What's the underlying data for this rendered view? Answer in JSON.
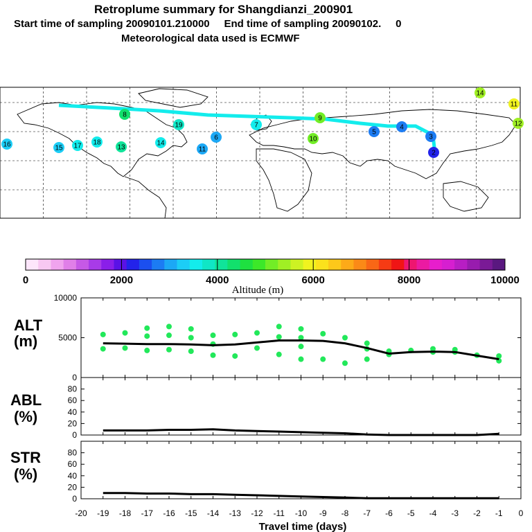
{
  "header": {
    "title": "Retroplume summary for Shangdianzi_200901",
    "sampling": "Start time of sampling 20090101.210000     End time of sampling 20090102.     0",
    "met": "Meteorological data used is ECMWF"
  },
  "colorbar": {
    "label": "Altitude (m)",
    "ticks": [
      "0",
      "2000",
      "4000",
      "6000",
      "8000",
      "10000"
    ],
    "colors": [
      "#fde6fb",
      "#f8c8f2",
      "#f0a4ee",
      "#e07fe8",
      "#c659e6",
      "#a83be8",
      "#8a1fe9",
      "#5a12e6",
      "#2323ea",
      "#1b4fef",
      "#1c7cf3",
      "#1ca8f5",
      "#1ccdf6",
      "#13ecec",
      "#10e6c6",
      "#10e49a",
      "#12e06c",
      "#1ee040",
      "#3ce829",
      "#72ed26",
      "#a0ef24",
      "#cdf223",
      "#f0f31f",
      "#fbe21c",
      "#fdc81a",
      "#fdaa18",
      "#fb8a17",
      "#f96716",
      "#f63b14",
      "#f01515",
      "#ee1670",
      "#eb1aa2",
      "#e71ecc",
      "#d61fd0",
      "#b81ec4",
      "#981cae",
      "#7a1a96",
      "#5a1880"
    ]
  },
  "map": {
    "labels": [
      {
        "n": "16",
        "c": "#1ccdf6"
      },
      {
        "n": "15",
        "c": "#1ccdf6"
      },
      {
        "n": "17",
        "c": "#13ecec"
      },
      {
        "n": "18",
        "c": "#13ecec"
      },
      {
        "n": "13",
        "c": "#10e49a"
      },
      {
        "n": "19",
        "c": "#10e6c6"
      },
      {
        "n": "14",
        "c": "#13ecec"
      },
      {
        "n": "11",
        "c": "#1ca8f5"
      },
      {
        "n": "6",
        "c": "#1ca8f5"
      },
      {
        "n": "7",
        "c": "#13ecec"
      },
      {
        "n": "5",
        "c": "#1c7cf3"
      },
      {
        "n": "4",
        "c": "#1c7cf3"
      },
      {
        "n": "3",
        "c": "#1c7cf3"
      },
      {
        "n": "2",
        "c": "#2323ea"
      },
      {
        "n": "10",
        "c": "#72ed26"
      },
      {
        "n": "9",
        "c": "#72ed26"
      },
      {
        "n": "8",
        "c": "#12e06c"
      },
      {
        "n": "12",
        "c": "#a0ef24"
      },
      {
        "n": "14",
        "c": "#a0ef24"
      },
      {
        "n": "11",
        "c": "#f0f31f"
      }
    ]
  },
  "panels": {
    "alt": {
      "label1": "ALT",
      "label2": "(m)",
      "yticks": [
        "10000",
        "5000",
        "0"
      ]
    },
    "abl": {
      "label1": "ABL",
      "label2": "(%)",
      "yticks": [
        "80",
        "60",
        "40",
        "20",
        "0"
      ]
    },
    "str": {
      "label1": "STR",
      "label2": "(%)",
      "yticks": [
        "80",
        "60",
        "40",
        "20",
        "0"
      ]
    }
  },
  "chart_data": {
    "type": "line",
    "title": "Retroplume summary for Shangdianzi_200901",
    "xlabel": "Travel time (days)",
    "x_ticks": [
      "-20",
      "-19",
      "-18",
      "-17",
      "-16",
      "-15",
      "-14",
      "-13",
      "-12",
      "-11",
      "-10",
      "-9",
      "-8",
      "-7",
      "-6",
      "-5",
      "-4",
      "-3",
      "-2",
      "-1",
      "0"
    ],
    "xlim": [
      -20,
      0
    ],
    "series": [
      {
        "name": "ALT (m)",
        "ylim": [
          0,
          10000
        ],
        "x": [
          -19,
          -18,
          -17,
          -16,
          -15,
          -14,
          -13,
          -12,
          -11,
          -10,
          -9,
          -8,
          -7,
          -6,
          -5,
          -4,
          -3,
          -2,
          -1
        ],
        "values": [
          4300,
          4250,
          4200,
          4200,
          4150,
          4050,
          4150,
          4400,
          4650,
          4650,
          4600,
          4300,
          3700,
          3000,
          3200,
          3250,
          3200,
          2750,
          2300
        ],
        "cluster_points": [
          [
            -19,
            5400
          ],
          [
            -19,
            3600
          ],
          [
            -18,
            5600
          ],
          [
            -18,
            3700
          ],
          [
            -17,
            6200
          ],
          [
            -17,
            5200
          ],
          [
            -17,
            3400
          ],
          [
            -16,
            6400
          ],
          [
            -16,
            5300
          ],
          [
            -16,
            3500
          ],
          [
            -15,
            6100
          ],
          [
            -15,
            5000
          ],
          [
            -15,
            3300
          ],
          [
            -14,
            5300
          ],
          [
            -14,
            4200
          ],
          [
            -14,
            2800
          ],
          [
            -13,
            5400
          ],
          [
            -13,
            2700
          ],
          [
            -12,
            5600
          ],
          [
            -12,
            3700
          ],
          [
            -11,
            6400
          ],
          [
            -11,
            5100
          ],
          [
            -11,
            2900
          ],
          [
            -10,
            6100
          ],
          [
            -10,
            5000
          ],
          [
            -10,
            3900
          ],
          [
            -10,
            2300
          ],
          [
            -9,
            5500
          ],
          [
            -9,
            2300
          ],
          [
            -8,
            5000
          ],
          [
            -8,
            1800
          ],
          [
            -7,
            4300
          ],
          [
            -7,
            3600
          ],
          [
            -7,
            2300
          ],
          [
            -6,
            3300
          ],
          [
            -6,
            2900
          ],
          [
            -5,
            3400
          ],
          [
            -4,
            3600
          ],
          [
            -4,
            3200
          ],
          [
            -3,
            3500
          ],
          [
            -3,
            3200
          ],
          [
            -2,
            2800
          ],
          [
            -1,
            2700
          ],
          [
            -1,
            2100
          ]
        ]
      },
      {
        "name": "ABL (%)",
        "ylim": [
          0,
          100
        ],
        "x": [
          -19,
          -18,
          -17,
          -16,
          -15,
          -14,
          -13,
          -12,
          -11,
          -10,
          -9,
          -8,
          -7,
          -6,
          -5,
          -4,
          -3,
          -2,
          -1
        ],
        "values": [
          8,
          8,
          8,
          9,
          9,
          10,
          8,
          7,
          6,
          5,
          4,
          3,
          1,
          0,
          0,
          0,
          0,
          0,
          2
        ]
      },
      {
        "name": "STR (%)",
        "ylim": [
          0,
          100
        ],
        "x": [
          -19,
          -18,
          -17,
          -16,
          -15,
          -14,
          -13,
          -12,
          -11,
          -10,
          -9,
          -8,
          -7,
          -6,
          -5,
          -4,
          -3,
          -2,
          -1
        ],
        "values": [
          10,
          10,
          9,
          9,
          8,
          8,
          7,
          6,
          5,
          4,
          3,
          2,
          1,
          1,
          1,
          1,
          1,
          1,
          1
        ]
      }
    ]
  }
}
